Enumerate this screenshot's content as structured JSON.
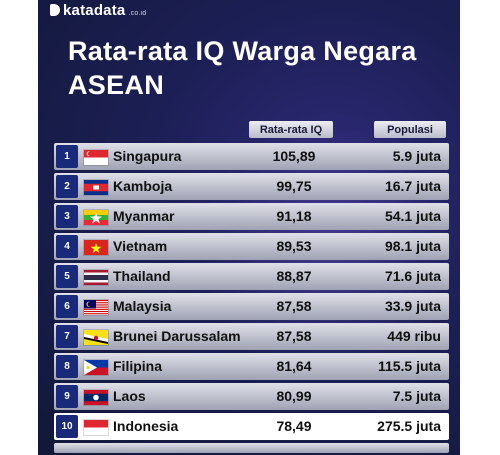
{
  "brand": {
    "name": "katadata",
    "suffix": ".co.id"
  },
  "title": "Rata-rata IQ Warga Negara ASEAN",
  "columns": {
    "iq": "Rata-rata IQ",
    "population": "Populasi"
  },
  "rows": [
    {
      "rank": "1",
      "country": "Singapura",
      "iq": "105,89",
      "population": "5.9 juta",
      "flag": "singapore-flag-icon"
    },
    {
      "rank": "2",
      "country": "Kamboja",
      "iq": "99,75",
      "population": "16.7 juta",
      "flag": "cambodia-flag-icon"
    },
    {
      "rank": "3",
      "country": "Myanmar",
      "iq": "91,18",
      "population": "54.1 juta",
      "flag": "myanmar-flag-icon"
    },
    {
      "rank": "4",
      "country": "Vietnam",
      "iq": "89,53",
      "population": "98.1 juta",
      "flag": "vietnam-flag-icon"
    },
    {
      "rank": "5",
      "country": "Thailand",
      "iq": "88,87",
      "population": "71.6 juta",
      "flag": "thailand-flag-icon"
    },
    {
      "rank": "6",
      "country": "Malaysia",
      "iq": "87,58",
      "population": "33.9 juta",
      "flag": "malaysia-flag-icon"
    },
    {
      "rank": "7",
      "country": "Brunei Darussalam",
      "iq": "87,58",
      "population": "449 ribu",
      "flag": "brunei-flag-icon"
    },
    {
      "rank": "8",
      "country": "Filipina",
      "iq": "81,64",
      "population": "115.5 juta",
      "flag": "philippines-flag-icon"
    },
    {
      "rank": "9",
      "country": "Laos",
      "iq": "80,99",
      "population": "7.5 juta",
      "flag": "laos-flag-icon"
    },
    {
      "rank": "10",
      "country": "Indonesia",
      "iq": "78,49",
      "population": "275.5 juta",
      "flag": "indonesia-flag-icon",
      "highlight": true
    }
  ],
  "colors": {
    "rank_badge": "#1a2a7a",
    "background": "#1c1f55",
    "highlight_row": "#ffffff"
  }
}
